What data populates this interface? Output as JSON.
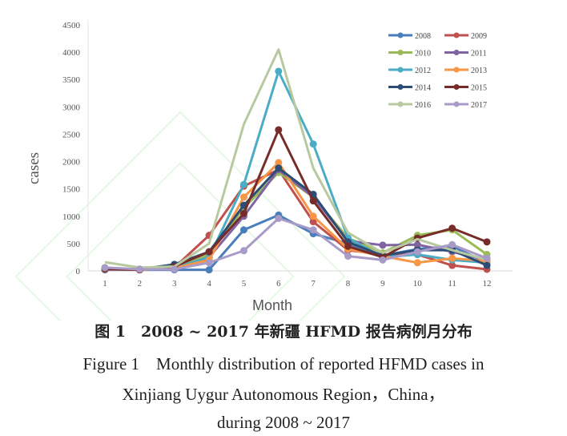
{
  "chart_data": {
    "type": "line",
    "xlabel": "Month",
    "ylabel": "cases",
    "ylim": [
      0,
      4500
    ],
    "yticks": [
      0,
      500,
      1000,
      1500,
      2000,
      2500,
      3000,
      3500,
      4000,
      4500
    ],
    "x": [
      1,
      2,
      3,
      4,
      5,
      6,
      7,
      8,
      9,
      10,
      11,
      12
    ],
    "grid": false,
    "legend_position": "top-right",
    "series": [
      {
        "name": "2008",
        "color": "#4a7ebb",
        "values": [
          20,
          20,
          20,
          20,
          750,
          1020,
          680,
          500,
          280,
          400,
          450,
          150
        ]
      },
      {
        "name": "2009",
        "color": "#c0504d",
        "values": [
          30,
          20,
          60,
          650,
          1550,
          1850,
          900,
          380,
          300,
          300,
          100,
          30
        ]
      },
      {
        "name": "2010",
        "color": "#9bbb59",
        "values": [
          60,
          30,
          80,
          300,
          1150,
          1800,
          1350,
          600,
          330,
          650,
          750,
          300
        ]
      },
      {
        "name": "2011",
        "color": "#8064a2",
        "values": [
          50,
          30,
          50,
          250,
          1000,
          1850,
          1350,
          550,
          470,
          480,
          350,
          200
        ]
      },
      {
        "name": "2012",
        "color": "#4bacc6",
        "values": [
          40,
          30,
          50,
          250,
          1580,
          3650,
          2320,
          600,
          250,
          300,
          200,
          150
        ]
      },
      {
        "name": "2013",
        "color": "#f79646",
        "values": [
          40,
          20,
          50,
          200,
          1350,
          1980,
          1000,
          400,
          270,
          150,
          230,
          180
        ]
      },
      {
        "name": "2014",
        "color": "#2c4d75",
        "values": [
          50,
          30,
          120,
          350,
          1200,
          1880,
          1400,
          530,
          280,
          380,
          380,
          100
        ]
      },
      {
        "name": "2015",
        "color": "#772c2a",
        "values": [
          40,
          20,
          80,
          350,
          1050,
          2580,
          1280,
          450,
          250,
          600,
          780,
          530
        ]
      },
      {
        "name": "2016",
        "color": "#b8c9a0",
        "values": [
          160,
          60,
          80,
          500,
          2680,
          4050,
          1880,
          700,
          330,
          580,
          380,
          200
        ]
      },
      {
        "name": "2017",
        "color": "#a99bc8",
        "values": [
          60,
          30,
          30,
          150,
          370,
          960,
          750,
          270,
          200,
          350,
          480,
          230
        ]
      }
    ]
  },
  "caption": {
    "cn": "图 1　2008 ~ 2017 年新疆 HFMD 报告病例月分布",
    "en1": "Figure 1　Monthly distribution of reported HFMD cases in",
    "en2": "Xinjiang Uygur Autonomous Region，China，",
    "en3": "during 2008 ~ 2017"
  }
}
